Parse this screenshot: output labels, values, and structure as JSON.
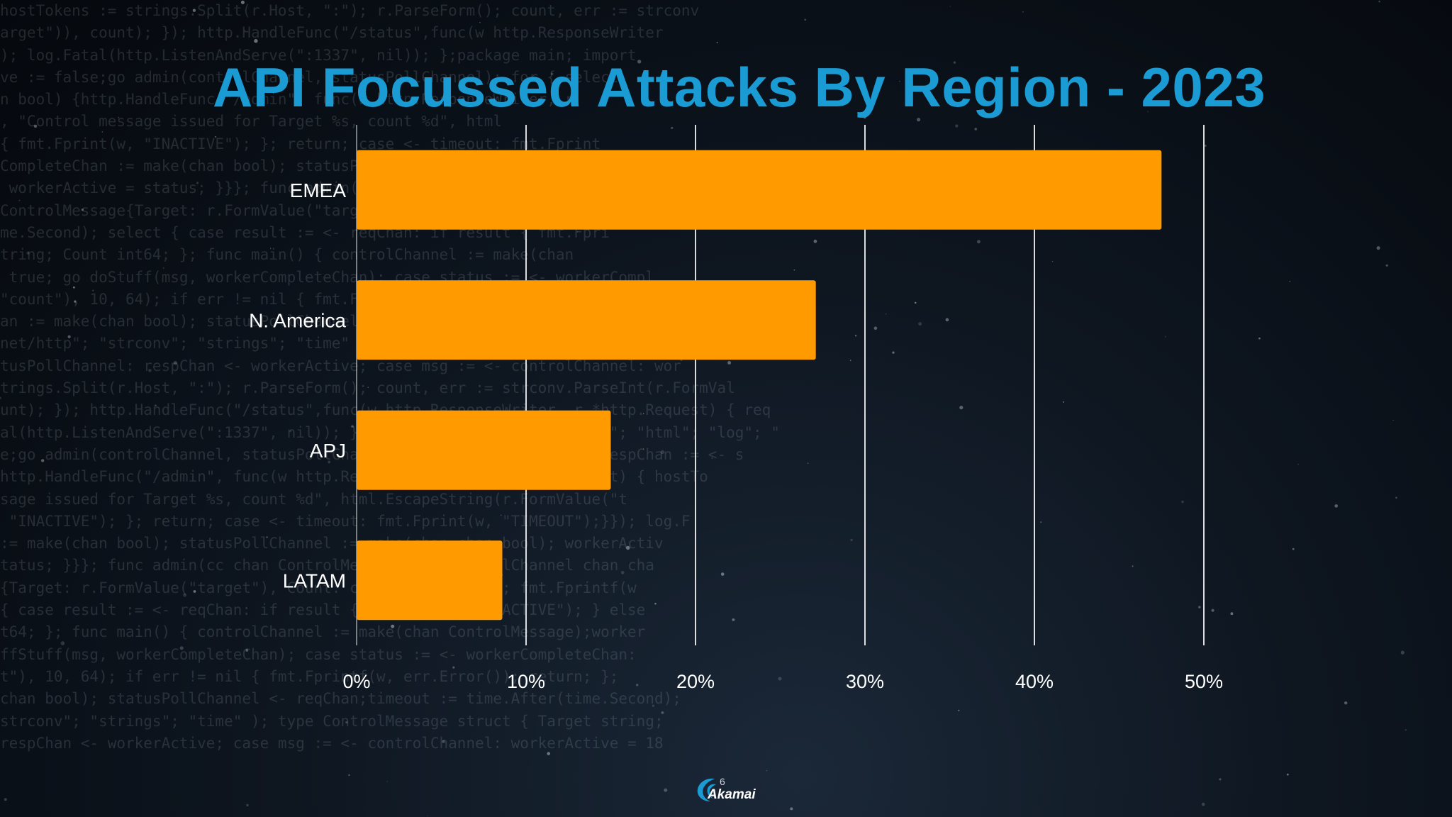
{
  "background_code": [
    "hostTokens := strings.Split(r.Host, \":\"); r.ParseForm(); count, err := strconv",
    "arget\")), count); }); http.HandleFunc(\"/status\",func(w http.ResponseWriter",
    "); log.Fatal(http.ListenAndServe(\":1337\", nil)); };package main; import",
    "ve := false;go admin(controlChannel, statusPollChannel); for { select",
    "n bool) {http.HandleFunc(\"/admin\", func(w http.ResponseWriter, r",
    ", \"Control message issued for Target %s, count %d\", html",
    "{ fmt.Fprint(w, \"INACTIVE\"); }; return; case <- timeout: fmt.Fprint",
    "CompleteChan := make(chan bool); statusPollChannel := make(chan",
    " workerActive = status; }}}; func admin(cc chan ControlMessage, stat",
    "ControlMessage{Target: r.FormValue(\"target\"), Count: count}; cc",
    "me.Second); select { case result := <- reqChan: if result { fmt.Fpri",
    "tring; Count int64; }; func main() { controlChannel := make(chan",
    " true; go doStuff(msg, workerCompleteChan); case status := <- workerCompl",
    "\"count\"), 10, 64); if err != nil { fmt.Fprintf(w, err.Error()); return; }; cc",
    "an := make(chan bool); statusPollChannel <- reqChan;timeout := time.After(ti",
    "net/http\"; \"strconv\"; \"strings\"; \"time\" ); type ControlMessage struct { Targe",
    "tusPollChannel: respChan <- workerActive; case msg := <- controlChannel: wor",
    "trings.Split(r.Host, \":\"); r.ParseForm(); count, err := strconv.ParseInt(r.FormVal",
    "unt); }); http.HandleFunc(\"/status\",func(w http.ResponseWriter, r *http.Request) { req",
    "al(http.ListenAndServe(\":1337\", nil)); };package main; import ( \"fmt\"; \"html\"; \"log\"; \"",
    "e;go admin(controlChannel, statusPollChannel); for { select { case respChan := <- s",
    "http.HandleFunc(\"/admin\", func(w http.ResponseWriter, r *http.Request) { hostTo",
    "sage issued for Target %s, count %d\", html.EscapeString(r.FormValue(\"t",
    " \"INACTIVE\"); }; return; case <- timeout: fmt.Fprint(w, \"TIMEOUT\");}}); log.F",
    ":= make(chan bool); statusPollChannel := make(chan chan bool); workerActiv",
    "tatus; }}}; func admin(cc chan ControlMessage, statusPollChannel chan cha",
    "{Target: r.FormValue(\"target\"), Count: count}; cc <- msg; fmt.Fprintf(w",
    "{ case result := <- reqChan: if result { fmt.Fprint(w, \"ACTIVE\"); } else",
    "t64; }; func main() { controlChannel := make(chan ControlMessage);worker",
    "ffStuff(msg, workerCompleteChan); case status := <- workerCompleteChan:",
    "t\"), 10, 64); if err != nil { fmt.Fprintf(w, err.Error()); return; };",
    "chan bool); statusPollChannel <- reqChan;timeout := time.After(time.Second);",
    "strconv\"; \"strings\"; \"time\" ); type ControlMessage struct { Target string;",
    "respChan <- workerActive; case msg := <- controlChannel: workerActive = 18"
  ],
  "slide": {
    "title": "API Focussed Attacks By Region - 2023"
  },
  "chart_data": {
    "type": "bar",
    "orientation": "horizontal",
    "categories": [
      "EMEA",
      "N. America",
      "APJ",
      "LATAM"
    ],
    "values": [
      47.5,
      27.1,
      15.0,
      8.6
    ],
    "xlim": [
      0,
      50
    ],
    "xticks": [
      "0%",
      "10%",
      "20%",
      "30%",
      "40%",
      "50%"
    ],
    "grid": true,
    "legend": "none",
    "bar_color": "#ff9a00",
    "title_color": "#1b9bd3"
  },
  "logo": {
    "name": "Akamai",
    "mark": "6"
  }
}
